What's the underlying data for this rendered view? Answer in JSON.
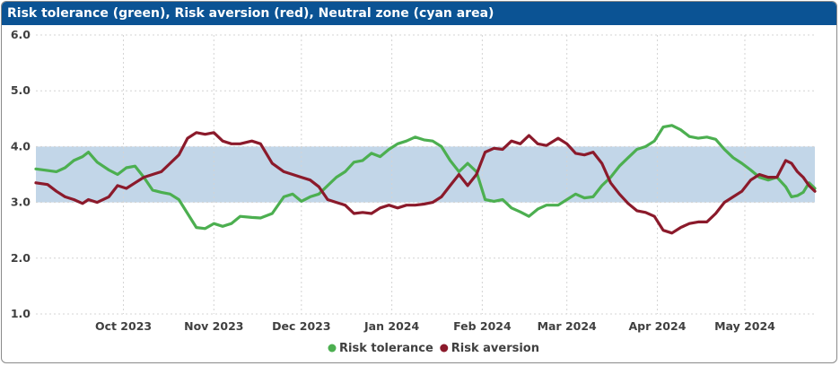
{
  "title": "Risk tolerance (green), Risk aversion (red), Neutral zone (cyan area)",
  "chart_data": {
    "type": "line",
    "title": "Risk tolerance (green), Risk aversion (red), Neutral zone (cyan area)",
    "xlabel": "",
    "ylabel": "",
    "xlim": [
      "2023-09-01",
      "2024-05-25"
    ],
    "ylim": [
      1.0,
      6.0
    ],
    "y_ticks": [
      "1.0",
      "2.0",
      "3.0",
      "4.0",
      "5.0",
      "6.0"
    ],
    "x_ticks": [
      {
        "date": "2023-10-01",
        "label": "Oct 2023"
      },
      {
        "date": "2023-11-01",
        "label": "Nov 2023"
      },
      {
        "date": "2023-12-01",
        "label": "Dec 2023"
      },
      {
        "date": "2024-01-01",
        "label": "Jan 2024"
      },
      {
        "date": "2024-02-01",
        "label": "Feb 2024"
      },
      {
        "date": "2024-03-01",
        "label": "Mar 2024"
      },
      {
        "date": "2024-04-01",
        "label": "Apr 2024"
      },
      {
        "date": "2024-05-01",
        "label": "May 2024"
      }
    ],
    "neutral_zone": {
      "from": 3.0,
      "to": 4.0,
      "color": "#c2d6e8"
    },
    "grid": true,
    "legend": "bottom",
    "series": [
      {
        "name": "Risk tolerance",
        "color": "#4caf50",
        "points": [
          [
            "2023-09-01",
            3.6
          ],
          [
            "2023-09-05",
            3.57
          ],
          [
            "2023-09-08",
            3.55
          ],
          [
            "2023-09-11",
            3.62
          ],
          [
            "2023-09-14",
            3.75
          ],
          [
            "2023-09-17",
            3.82
          ],
          [
            "2023-09-19",
            3.9
          ],
          [
            "2023-09-22",
            3.72
          ],
          [
            "2023-09-26",
            3.58
          ],
          [
            "2023-09-29",
            3.5
          ],
          [
            "2023-10-02",
            3.62
          ],
          [
            "2023-10-05",
            3.65
          ],
          [
            "2023-10-08",
            3.45
          ],
          [
            "2023-10-11",
            3.22
          ],
          [
            "2023-10-14",
            3.18
          ],
          [
            "2023-10-17",
            3.15
          ],
          [
            "2023-10-20",
            3.05
          ],
          [
            "2023-10-23",
            2.8
          ],
          [
            "2023-10-26",
            2.55
          ],
          [
            "2023-10-29",
            2.53
          ],
          [
            "2023-11-01",
            2.62
          ],
          [
            "2023-11-04",
            2.57
          ],
          [
            "2023-11-07",
            2.62
          ],
          [
            "2023-11-10",
            2.75
          ],
          [
            "2023-11-14",
            2.73
          ],
          [
            "2023-11-17",
            2.72
          ],
          [
            "2023-11-21",
            2.8
          ],
          [
            "2023-11-25",
            3.1
          ],
          [
            "2023-11-28",
            3.15
          ],
          [
            "2023-12-01",
            3.02
          ],
          [
            "2023-12-04",
            3.1
          ],
          [
            "2023-12-07",
            3.15
          ],
          [
            "2023-12-10",
            3.3
          ],
          [
            "2023-12-13",
            3.45
          ],
          [
            "2023-12-16",
            3.55
          ],
          [
            "2023-12-19",
            3.72
          ],
          [
            "2023-12-22",
            3.75
          ],
          [
            "2023-12-25",
            3.88
          ],
          [
            "2023-12-28",
            3.82
          ],
          [
            "2023-12-31",
            3.95
          ],
          [
            "2024-01-03",
            4.05
          ],
          [
            "2024-01-06",
            4.1
          ],
          [
            "2024-01-09",
            4.17
          ],
          [
            "2024-01-12",
            4.12
          ],
          [
            "2024-01-15",
            4.1
          ],
          [
            "2024-01-18",
            4.0
          ],
          [
            "2024-01-21",
            3.75
          ],
          [
            "2024-01-24",
            3.55
          ],
          [
            "2024-01-27",
            3.7
          ],
          [
            "2024-01-30",
            3.55
          ],
          [
            "2024-02-02",
            3.05
          ],
          [
            "2024-02-05",
            3.02
          ],
          [
            "2024-02-08",
            3.05
          ],
          [
            "2024-02-11",
            2.9
          ],
          [
            "2024-02-14",
            2.83
          ],
          [
            "2024-02-17",
            2.75
          ],
          [
            "2024-02-20",
            2.88
          ],
          [
            "2024-02-23",
            2.95
          ],
          [
            "2024-02-27",
            2.95
          ],
          [
            "2024-03-01",
            3.05
          ],
          [
            "2024-03-04",
            3.15
          ],
          [
            "2024-03-07",
            3.08
          ],
          [
            "2024-03-10",
            3.1
          ],
          [
            "2024-03-13",
            3.3
          ],
          [
            "2024-03-16",
            3.45
          ],
          [
            "2024-03-19",
            3.65
          ],
          [
            "2024-03-22",
            3.8
          ],
          [
            "2024-03-25",
            3.95
          ],
          [
            "2024-03-28",
            4.0
          ],
          [
            "2024-03-31",
            4.1
          ],
          [
            "2024-04-03",
            4.35
          ],
          [
            "2024-04-06",
            4.38
          ],
          [
            "2024-04-09",
            4.3
          ],
          [
            "2024-04-12",
            4.18
          ],
          [
            "2024-04-15",
            4.15
          ],
          [
            "2024-04-18",
            4.17
          ],
          [
            "2024-04-21",
            4.13
          ],
          [
            "2024-04-24",
            3.95
          ],
          [
            "2024-04-27",
            3.8
          ],
          [
            "2024-04-30",
            3.7
          ],
          [
            "2024-05-03",
            3.58
          ],
          [
            "2024-05-06",
            3.45
          ],
          [
            "2024-05-09",
            3.4
          ],
          [
            "2024-05-12",
            3.45
          ],
          [
            "2024-05-15",
            3.28
          ],
          [
            "2024-05-17",
            3.1
          ],
          [
            "2024-05-19",
            3.12
          ],
          [
            "2024-05-21",
            3.18
          ],
          [
            "2024-05-23",
            3.35
          ],
          [
            "2024-05-25",
            3.25
          ]
        ]
      },
      {
        "name": "Risk aversion",
        "color": "#8b1a2b",
        "points": [
          [
            "2023-09-01",
            3.35
          ],
          [
            "2023-09-05",
            3.32
          ],
          [
            "2023-09-08",
            3.2
          ],
          [
            "2023-09-11",
            3.1
          ],
          [
            "2023-09-14",
            3.05
          ],
          [
            "2023-09-17",
            2.98
          ],
          [
            "2023-09-19",
            3.05
          ],
          [
            "2023-09-22",
            3.0
          ],
          [
            "2023-09-26",
            3.1
          ],
          [
            "2023-09-29",
            3.3
          ],
          [
            "2023-10-02",
            3.25
          ],
          [
            "2023-10-05",
            3.35
          ],
          [
            "2023-10-08",
            3.45
          ],
          [
            "2023-10-11",
            3.5
          ],
          [
            "2023-10-14",
            3.55
          ],
          [
            "2023-10-17",
            3.7
          ],
          [
            "2023-10-20",
            3.85
          ],
          [
            "2023-10-23",
            4.15
          ],
          [
            "2023-10-26",
            4.25
          ],
          [
            "2023-10-29",
            4.22
          ],
          [
            "2023-11-01",
            4.25
          ],
          [
            "2023-11-04",
            4.1
          ],
          [
            "2023-11-07",
            4.05
          ],
          [
            "2023-11-10",
            4.05
          ],
          [
            "2023-11-14",
            4.1
          ],
          [
            "2023-11-17",
            4.05
          ],
          [
            "2023-11-21",
            3.7
          ],
          [
            "2023-11-25",
            3.55
          ],
          [
            "2023-11-28",
            3.5
          ],
          [
            "2023-12-01",
            3.45
          ],
          [
            "2023-12-04",
            3.4
          ],
          [
            "2023-12-07",
            3.28
          ],
          [
            "2023-12-10",
            3.05
          ],
          [
            "2023-12-13",
            3.0
          ],
          [
            "2023-12-16",
            2.95
          ],
          [
            "2023-12-19",
            2.8
          ],
          [
            "2023-12-22",
            2.82
          ],
          [
            "2023-12-25",
            2.8
          ],
          [
            "2023-12-28",
            2.9
          ],
          [
            "2023-12-31",
            2.95
          ],
          [
            "2024-01-03",
            2.9
          ],
          [
            "2024-01-06",
            2.95
          ],
          [
            "2024-01-09",
            2.95
          ],
          [
            "2024-01-12",
            2.97
          ],
          [
            "2024-01-15",
            3.0
          ],
          [
            "2024-01-18",
            3.1
          ],
          [
            "2024-01-21",
            3.3
          ],
          [
            "2024-01-24",
            3.5
          ],
          [
            "2024-01-27",
            3.3
          ],
          [
            "2024-01-30",
            3.5
          ],
          [
            "2024-02-02",
            3.9
          ],
          [
            "2024-02-05",
            3.97
          ],
          [
            "2024-02-08",
            3.95
          ],
          [
            "2024-02-11",
            4.1
          ],
          [
            "2024-02-14",
            4.05
          ],
          [
            "2024-02-17",
            4.2
          ],
          [
            "2024-02-20",
            4.05
          ],
          [
            "2024-02-23",
            4.02
          ],
          [
            "2024-02-27",
            4.15
          ],
          [
            "2024-03-01",
            4.05
          ],
          [
            "2024-03-04",
            3.88
          ],
          [
            "2024-03-07",
            3.85
          ],
          [
            "2024-03-10",
            3.9
          ],
          [
            "2024-03-13",
            3.7
          ],
          [
            "2024-03-16",
            3.35
          ],
          [
            "2024-03-19",
            3.15
          ],
          [
            "2024-03-22",
            2.98
          ],
          [
            "2024-03-25",
            2.85
          ],
          [
            "2024-03-28",
            2.82
          ],
          [
            "2024-03-31",
            2.75
          ],
          [
            "2024-04-03",
            2.5
          ],
          [
            "2024-04-06",
            2.45
          ],
          [
            "2024-04-09",
            2.55
          ],
          [
            "2024-04-12",
            2.62
          ],
          [
            "2024-04-15",
            2.65
          ],
          [
            "2024-04-18",
            2.65
          ],
          [
            "2024-04-21",
            2.8
          ],
          [
            "2024-04-24",
            3.0
          ],
          [
            "2024-04-27",
            3.1
          ],
          [
            "2024-04-30",
            3.2
          ],
          [
            "2024-05-03",
            3.4
          ],
          [
            "2024-05-06",
            3.5
          ],
          [
            "2024-05-09",
            3.45
          ],
          [
            "2024-05-12",
            3.45
          ],
          [
            "2024-05-15",
            3.75
          ],
          [
            "2024-05-17",
            3.7
          ],
          [
            "2024-05-19",
            3.55
          ],
          [
            "2024-05-21",
            3.45
          ],
          [
            "2024-05-23",
            3.3
          ],
          [
            "2024-05-25",
            3.2
          ]
        ]
      }
    ]
  }
}
